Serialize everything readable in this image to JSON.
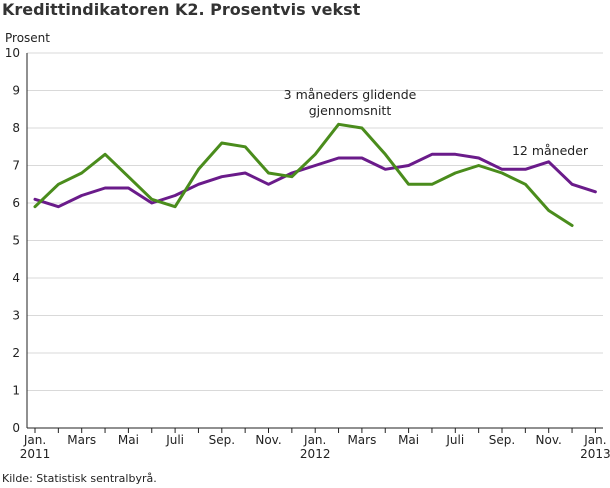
{
  "chart_data": {
    "type": "line",
    "title": "Kredittindikatoren K2. Prosentvis vekst",
    "ylabel": "Prosent",
    "ylim": [
      0,
      10
    ],
    "yticks": [
      0,
      1,
      2,
      3,
      4,
      5,
      6,
      7,
      8,
      9,
      10
    ],
    "xtick_labels": [
      {
        "month": 0,
        "line1": "Jan.",
        "line2": "2011"
      },
      {
        "month": 2,
        "line1": "Mars",
        "line2": ""
      },
      {
        "month": 4,
        "line1": "Mai",
        "line2": ""
      },
      {
        "month": 6,
        "line1": "Juli",
        "line2": ""
      },
      {
        "month": 8,
        "line1": "Sep.",
        "line2": ""
      },
      {
        "month": 10,
        "line1": "Nov.",
        "line2": ""
      },
      {
        "month": 12,
        "line1": "Jan.",
        "line2": "2012"
      },
      {
        "month": 14,
        "line1": "Mars",
        "line2": ""
      },
      {
        "month": 16,
        "line1": "Mai",
        "line2": ""
      },
      {
        "month": 18,
        "line1": "Juli",
        "line2": ""
      },
      {
        "month": 20,
        "line1": "Sep.",
        "line2": ""
      },
      {
        "month": 22,
        "line1": "Nov.",
        "line2": ""
      },
      {
        "month": 24,
        "line1": "Jan.",
        "line2": "2013"
      }
    ],
    "series": [
      {
        "name": "12 måneder",
        "color": "#6a1b8a",
        "label_lines": [
          "12 måneder"
        ],
        "values": [
          6.1,
          5.9,
          6.2,
          6.4,
          6.4,
          6.0,
          6.2,
          6.5,
          6.7,
          6.8,
          6.5,
          6.8,
          7.0,
          7.2,
          7.2,
          6.9,
          7.0,
          7.3,
          7.3,
          7.2,
          6.9,
          6.9,
          7.1,
          6.5,
          6.3
        ]
      },
      {
        "name": "3 måneders glidende gjennomsnitt",
        "color": "#4a8c1c",
        "label_lines": [
          "3 måneders glidende",
          "gjennomsnitt"
        ],
        "values": [
          5.9,
          6.5,
          6.8,
          7.3,
          6.7,
          6.1,
          5.9,
          6.9,
          7.6,
          7.5,
          6.8,
          6.7,
          7.3,
          8.1,
          8.0,
          7.3,
          6.5,
          6.5,
          6.8,
          7.0,
          6.8,
          6.5,
          5.8,
          5.4
        ]
      }
    ]
  },
  "source": "Kilde: Statistisk sentralbyrå."
}
